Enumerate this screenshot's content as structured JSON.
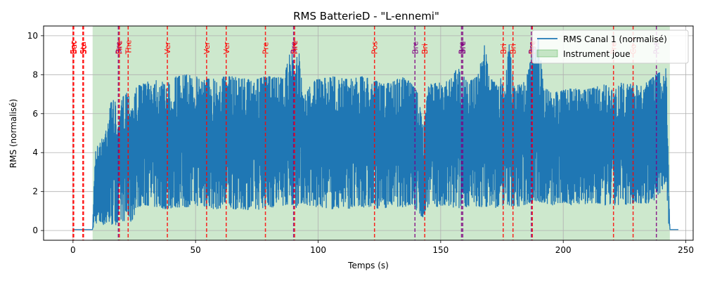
{
  "chart_data": {
    "type": "line",
    "title": "RMS BatterieD - \"L-ennemi\"",
    "xlabel": "Temps (s)",
    "ylabel": "RMS (normalisé)",
    "xlim": [
      -12,
      253
    ],
    "ylim": [
      -0.5,
      10.5
    ],
    "xticks": [
      0,
      50,
      100,
      150,
      200,
      250
    ],
    "yticks": [
      0,
      2,
      4,
      6,
      8,
      10
    ],
    "grid": true,
    "legend_position": "top-right",
    "series": [
      {
        "name": "RMS Canal 1 (normalisé)",
        "color": "#1f77b4",
        "envelope": [
          [
            0,
            0.05,
            0.05
          ],
          [
            8,
            0.05,
            0.05
          ],
          [
            9,
            0.4,
            4.2
          ],
          [
            11,
            0.3,
            4.5
          ],
          [
            13,
            0.3,
            5.0
          ],
          [
            15,
            0.3,
            6.5
          ],
          [
            17,
            0.3,
            6.8
          ],
          [
            18.5,
            0.3,
            5.2
          ],
          [
            20,
            0.5,
            6.8
          ],
          [
            22,
            0.5,
            7.2
          ],
          [
            24,
            0.4,
            6.6
          ],
          [
            26,
            1.2,
            7.4
          ],
          [
            30,
            1.3,
            7.6
          ],
          [
            34,
            1.2,
            7.8
          ],
          [
            38,
            1.1,
            7.5
          ],
          [
            42,
            1.2,
            7.9
          ],
          [
            46,
            1.2,
            8.0
          ],
          [
            50,
            1.3,
            7.9
          ],
          [
            54,
            1.2,
            7.8
          ],
          [
            58,
            1.1,
            7.8
          ],
          [
            62,
            1.2,
            7.9
          ],
          [
            66,
            1.1,
            7.9
          ],
          [
            70,
            1.1,
            7.8
          ],
          [
            74,
            1.0,
            7.7
          ],
          [
            78,
            1.2,
            7.9
          ],
          [
            82,
            1.2,
            7.9
          ],
          [
            86,
            1.3,
            7.8
          ],
          [
            89,
            1.4,
            9.4
          ],
          [
            90.5,
            1.0,
            8.0
          ],
          [
            92,
            1.4,
            9.6
          ],
          [
            94,
            1.4,
            6.8
          ],
          [
            98,
            1.2,
            7.7
          ],
          [
            102,
            1.2,
            7.8
          ],
          [
            106,
            1.1,
            7.9
          ],
          [
            110,
            1.2,
            7.8
          ],
          [
            114,
            1.1,
            7.8
          ],
          [
            118,
            1.2,
            7.9
          ],
          [
            122,
            1.2,
            7.8
          ],
          [
            126,
            1.1,
            7.5
          ],
          [
            130,
            1.3,
            7.6
          ],
          [
            134,
            1.2,
            7.9
          ],
          [
            138,
            1.3,
            7.6
          ],
          [
            141,
            0.9,
            7.0
          ],
          [
            143,
            0.6,
            5.2
          ],
          [
            145,
            1.3,
            7.5
          ],
          [
            150,
            1.2,
            7.6
          ],
          [
            154,
            1.2,
            7.8
          ],
          [
            157,
            1.1,
            8.4
          ],
          [
            159,
            1.3,
            8.0
          ],
          [
            161,
            1.2,
            7.6
          ],
          [
            165,
            1.2,
            7.9
          ],
          [
            168,
            1.2,
            9.6
          ],
          [
            170,
            1.3,
            7.7
          ],
          [
            174,
            1.1,
            7.9
          ],
          [
            176,
            1.4,
            7.5
          ],
          [
            178,
            1.3,
            9.7
          ],
          [
            180,
            1.2,
            7.3
          ],
          [
            184,
            1.3,
            7.8
          ],
          [
            186,
            1.4,
            8.3
          ],
          [
            188,
            1.5,
            9.7
          ],
          [
            190,
            1.5,
            9.9
          ],
          [
            192,
            1.4,
            7.3
          ],
          [
            196,
            1.3,
            7.1
          ],
          [
            200,
            1.4,
            7.2
          ],
          [
            204,
            1.3,
            7.3
          ],
          [
            208,
            1.4,
            7.2
          ],
          [
            212,
            1.3,
            7.3
          ],
          [
            216,
            1.3,
            7.6
          ],
          [
            220,
            1.3,
            7.2
          ],
          [
            224,
            1.3,
            7.6
          ],
          [
            228,
            1.4,
            7.5
          ],
          [
            232,
            1.4,
            7.4
          ],
          [
            236,
            1.4,
            7.8
          ],
          [
            240,
            2.0,
            8.2
          ],
          [
            242,
            2.5,
            8.4
          ],
          [
            243,
            0.2,
            3.0
          ],
          [
            243.5,
            0.05,
            0.05
          ],
          [
            247,
            0.05,
            0.05
          ]
        ]
      }
    ],
    "shaded_region": {
      "name": "Instrument joue",
      "x_start": 8,
      "x_end": 243.5,
      "color": "#2ca02c"
    },
    "markers": [
      {
        "x": 0.0,
        "label": "Enc",
        "color": "#ff0000"
      },
      {
        "x": 0.3,
        "label": "Bat",
        "color": "#ff0000"
      },
      {
        "x": 4.0,
        "label": "Sta",
        "color": "#ff0000"
      },
      {
        "x": 4.3,
        "label": "So",
        "color": "#ff0000"
      },
      {
        "x": 18.5,
        "label": "Bre",
        "color": "#800080"
      },
      {
        "x": 18.9,
        "label": "Fire",
        "color": "#ff0000"
      },
      {
        "x": 22.5,
        "label": "The",
        "color": "#ff0000"
      },
      {
        "x": 38.5,
        "label": "Ver",
        "color": "#ff0000"
      },
      {
        "x": 54.5,
        "label": "Ver",
        "color": "#ff0000"
      },
      {
        "x": 62.5,
        "label": "Ver",
        "color": "#ff0000"
      },
      {
        "x": 78.5,
        "label": "Pre",
        "color": "#ff0000"
      },
      {
        "x": 90.0,
        "label": "Bre",
        "color": "#800080"
      },
      {
        "x": 90.4,
        "label": "Fire",
        "color": "#ff0000"
      },
      {
        "x": 123.0,
        "label": "Pos",
        "color": "#ff0000"
      },
      {
        "x": 139.5,
        "label": "Bre",
        "color": "#800080"
      },
      {
        "x": 143.5,
        "label": "Bri",
        "color": "#ff0000"
      },
      {
        "x": 158.5,
        "label": "Bre",
        "color": "#800080"
      },
      {
        "x": 159.0,
        "label": "Bre",
        "color": "#800080"
      },
      {
        "x": 175.5,
        "label": "Bri",
        "color": "#ff0000"
      },
      {
        "x": 179.5,
        "label": "Bri",
        "color": "#ff0000"
      },
      {
        "x": 187.0,
        "label": "Bre",
        "color": "#800080"
      },
      {
        "x": 187.4,
        "label": "Fire",
        "color": "#ff0000"
      },
      {
        "x": 220.5,
        "label": "Pre",
        "color": "#ff0000"
      },
      {
        "x": 228.5,
        "label": "Co",
        "color": "#ff0000"
      },
      {
        "x": 238.0,
        "label": "Pot",
        "color": "#800080"
      }
    ]
  }
}
